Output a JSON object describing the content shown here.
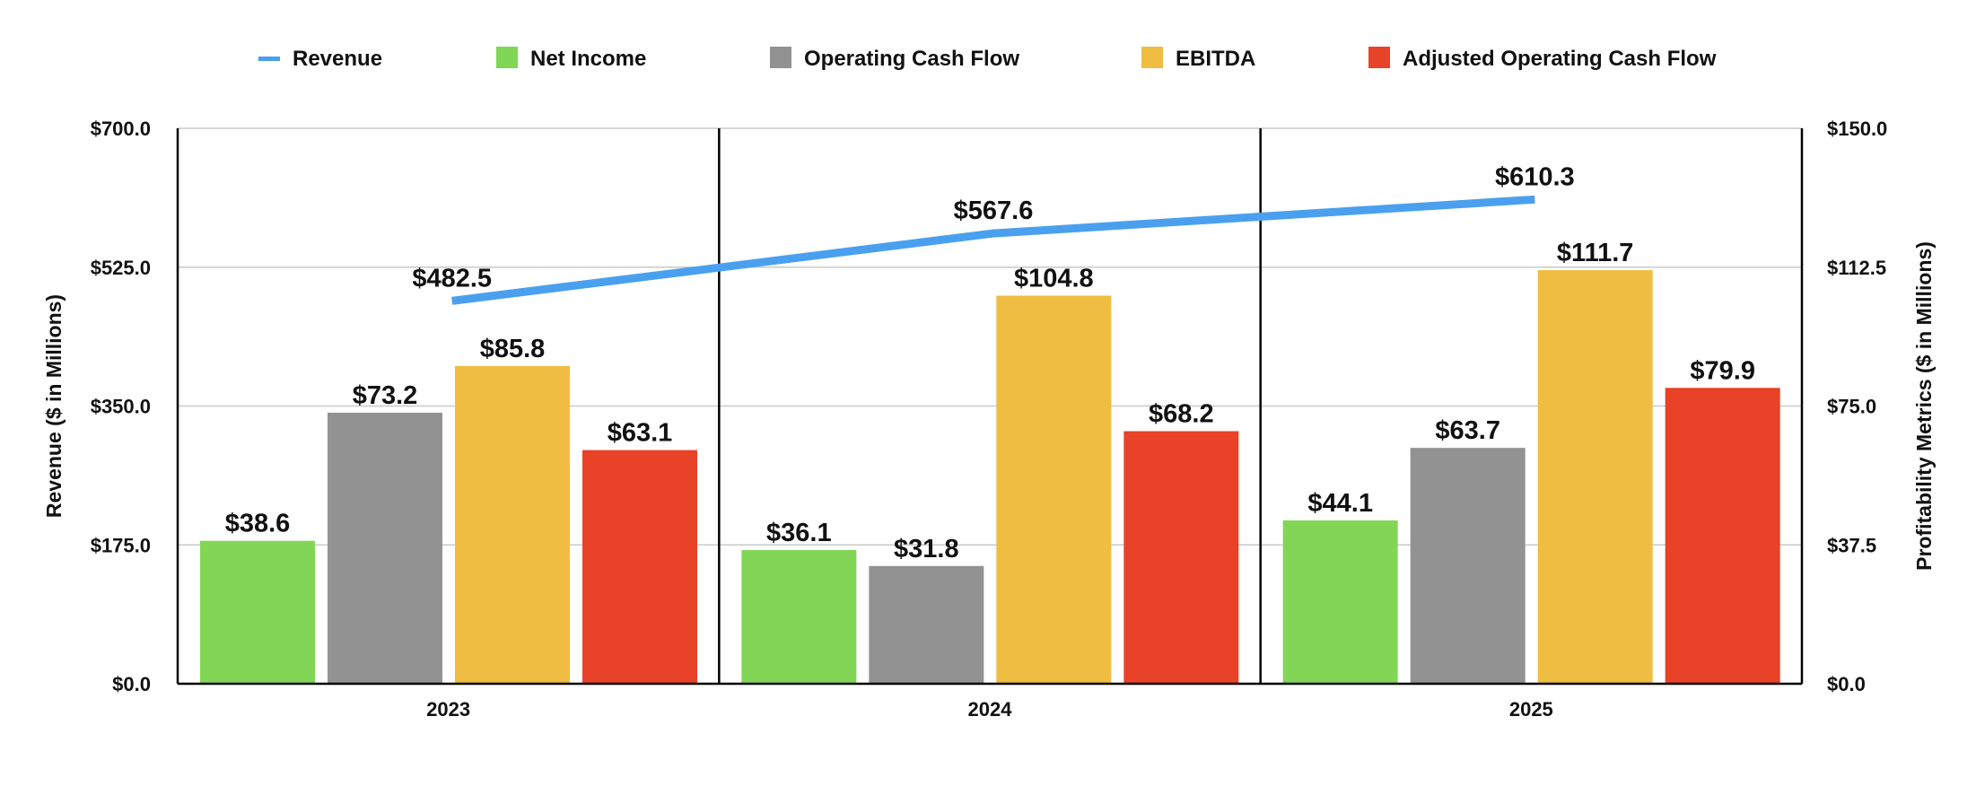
{
  "chart_data": {
    "type": "bar",
    "categories": [
      "2023",
      "2024",
      "2025"
    ],
    "line_series": {
      "name": "Revenue",
      "axis": "left",
      "color": "#4aa0ee",
      "values": [
        482.5,
        567.6,
        610.3
      ],
      "labels": [
        "$482.5",
        "$567.6",
        "$610.3"
      ]
    },
    "series": [
      {
        "name": "Net Income",
        "axis": "right",
        "color": "#82d655",
        "values": [
          38.6,
          36.1,
          44.1
        ],
        "labels": [
          "$38.6",
          "$36.1",
          "$44.1"
        ]
      },
      {
        "name": "Operating Cash Flow",
        "axis": "right",
        "color": "#929292",
        "values": [
          73.2,
          31.8,
          63.7
        ],
        "labels": [
          "$73.2",
          "$31.8",
          "$63.7"
        ]
      },
      {
        "name": "EBITDA",
        "axis": "right",
        "color": "#eebd42",
        "values": [
          85.8,
          104.8,
          111.7
        ],
        "labels": [
          "$85.8",
          "$104.8",
          "$111.7"
        ]
      },
      {
        "name": "Adjusted Operating Cash Flow",
        "axis": "right",
        "color": "#e84228",
        "values": [
          63.1,
          68.2,
          79.9
        ],
        "labels": [
          "$63.1",
          "$68.2",
          "$79.9"
        ]
      }
    ],
    "y_left": {
      "label": "Revenue ($ in Millions)",
      "lim": [
        0,
        700
      ],
      "ticks": [
        0,
        175,
        350,
        525,
        700
      ],
      "tick_labels": [
        "$0.0",
        "$175.0",
        "$350.0",
        "$525.0",
        "$700.0"
      ]
    },
    "y_right": {
      "label": "Profitability Metrics ($ in Millions)",
      "lim": [
        0,
        150
      ],
      "ticks": [
        0,
        37.5,
        75,
        112.5,
        150
      ],
      "tick_labels": [
        "$0.0",
        "$37.5",
        "$75.0",
        "$112.5",
        "$150.0"
      ]
    },
    "grid": true,
    "legend_position": "top-center",
    "legend": [
      "Revenue",
      "Net Income",
      "Operating Cash Flow",
      "EBITDA",
      "Adjusted Operating Cash Flow"
    ]
  }
}
